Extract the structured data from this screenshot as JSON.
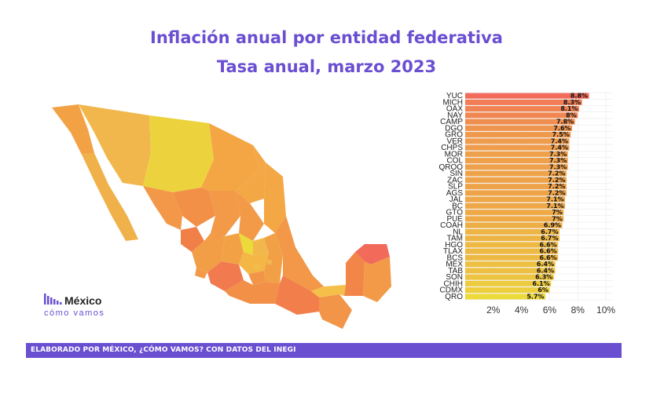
{
  "header": {
    "title": "Inflación anual por entidad federativa",
    "subtitle": "Tasa anual, marzo 2023"
  },
  "logo": {
    "line1": "México",
    "line2": "cómo vamos"
  },
  "footer": {
    "text": "ELABORADO POR MÉXICO, ¿CÓMO VAMOS? CON DATOS DEL INEGI"
  },
  "colors": {
    "accent": "#6a4fd1",
    "high": "#f26a5a",
    "low": "#ecd93a"
  },
  "map": {
    "legend": ""
  },
  "chart_data": {
    "type": "bar",
    "orientation": "horizontal",
    "categories": [
      "YUC",
      "MICH",
      "OAX",
      "NAY",
      "CAMP",
      "DGO",
      "GRO",
      "VER",
      "CHPS",
      "MOR",
      "COL",
      "QROO",
      "SIN",
      "ZAC",
      "SLP",
      "AGS",
      "JAL",
      "BC",
      "GTO",
      "PUE",
      "COAH",
      "NL",
      "TAM",
      "HGO",
      "TLAX",
      "BCS",
      "MEX",
      "TAB",
      "SON",
      "CHIH",
      "CDMX",
      "QRO"
    ],
    "values": [
      8.8,
      8.3,
      8.1,
      8,
      7.8,
      7.6,
      7.5,
      7.4,
      7.4,
      7.3,
      7.3,
      7.3,
      7.2,
      7.2,
      7.2,
      7.2,
      7.1,
      7.1,
      7,
      7,
      6.9,
      6.7,
      6.7,
      6.6,
      6.6,
      6.6,
      6.4,
      6.4,
      6.3,
      6.1,
      6,
      5.7
    ],
    "data_labels": [
      "8.8%",
      "8.3%",
      "8.1%",
      "8%",
      "7.8%",
      "7.6%",
      "7.5%",
      "7.4%",
      "7.4%",
      "7.3%",
      "7.3%",
      "7.3%",
      "7.2%",
      "7.2%",
      "7.2%",
      "7.2%",
      "7.1%",
      "7.1%",
      "7%",
      "7%",
      "6.9%",
      "6.7%",
      "6.7%",
      "6.6%",
      "6.6%",
      "6.6%",
      "6.4%",
      "6.4%",
      "6.3%",
      "6.1%",
      "6%",
      "5.7%"
    ],
    "xticks": [
      "2%",
      "4%",
      "6%",
      "8%",
      "10%"
    ],
    "xlim": [
      0,
      10.5
    ],
    "grid": true
  }
}
